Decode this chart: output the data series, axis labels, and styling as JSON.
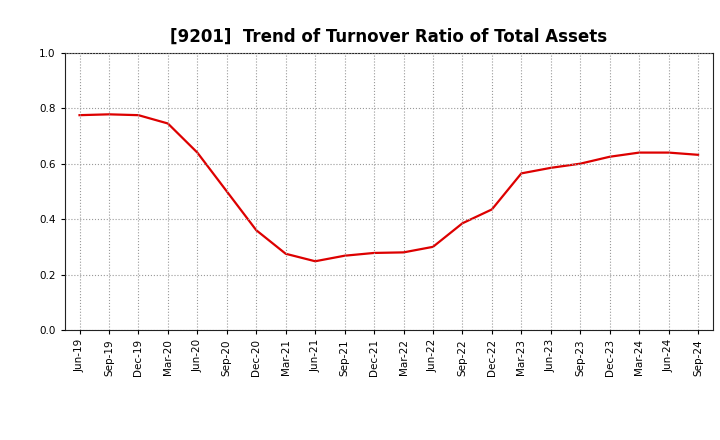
{
  "title": "[9201]  Trend of Turnover Ratio of Total Assets",
  "x_labels": [
    "Jun-19",
    "Sep-19",
    "Dec-19",
    "Mar-20",
    "Jun-20",
    "Sep-20",
    "Dec-20",
    "Mar-21",
    "Jun-21",
    "Sep-21",
    "Dec-21",
    "Mar-22",
    "Jun-22",
    "Sep-22",
    "Dec-22",
    "Mar-23",
    "Jun-23",
    "Sep-23",
    "Dec-23",
    "Mar-24",
    "Jun-24",
    "Sep-24"
  ],
  "y_values": [
    0.775,
    0.778,
    0.775,
    0.745,
    0.64,
    0.5,
    0.36,
    0.275,
    0.248,
    0.268,
    0.278,
    0.28,
    0.3,
    0.385,
    0.435,
    0.565,
    0.585,
    0.6,
    0.625,
    0.64,
    0.64,
    0.632
  ],
  "line_color": "#dd0000",
  "line_width": 1.6,
  "ylim": [
    0.0,
    1.0
  ],
  "yticks": [
    0.0,
    0.2,
    0.4,
    0.6,
    0.8,
    1.0
  ],
  "grid_color": "#999999",
  "grid_style": "dotted",
  "background_color": "#ffffff",
  "title_fontsize": 12,
  "tick_fontsize": 7.5
}
